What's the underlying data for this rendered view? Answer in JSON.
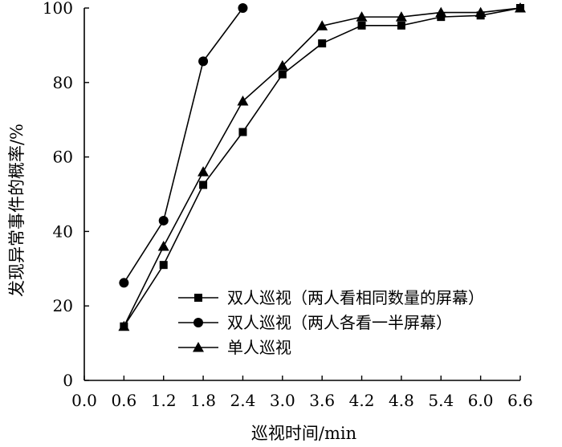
{
  "chart_data": {
    "type": "line",
    "title": "",
    "xlabel": "巡视时间/min",
    "ylabel": "发现异常事件的概率/%",
    "xlim": [
      0.0,
      6.6
    ],
    "ylim": [
      0,
      100
    ],
    "xticks": [
      "0.0",
      "0.6",
      "1.2",
      "1.8",
      "2.4",
      "3.0",
      "3.6",
      "4.2",
      "4.8",
      "5.4",
      "6.0",
      "6.6"
    ],
    "yticks": [
      "0",
      "20",
      "40",
      "60",
      "80",
      "100"
    ],
    "grid": false,
    "legend_position": "bottom-right",
    "series": [
      {
        "name": "双人巡视（两人看相同数量的屏幕）",
        "marker": "square",
        "x": [
          0.6,
          1.2,
          1.8,
          2.4,
          3.0,
          3.6,
          4.2,
          4.8,
          5.4,
          6.0,
          6.6
        ],
        "values": [
          14.5,
          31,
          52.5,
          66.7,
          82.2,
          90.5,
          95.3,
          95.3,
          97.6,
          98,
          100
        ]
      },
      {
        "name": "双人巡视（两人各看一半屏幕）",
        "marker": "circle",
        "x": [
          0.6,
          1.2,
          1.8,
          2.4
        ],
        "values": [
          26.2,
          42.9,
          85.7,
          100
        ]
      },
      {
        "name": "单人巡视",
        "marker": "triangle",
        "x": [
          0.6,
          1.2,
          1.8,
          2.4,
          3.0,
          3.6,
          4.2,
          4.8,
          5.4,
          6.0,
          6.6
        ],
        "values": [
          14.5,
          36,
          56,
          75,
          84.5,
          95.2,
          97.6,
          97.6,
          98.8,
          98.8,
          100
        ]
      }
    ]
  }
}
